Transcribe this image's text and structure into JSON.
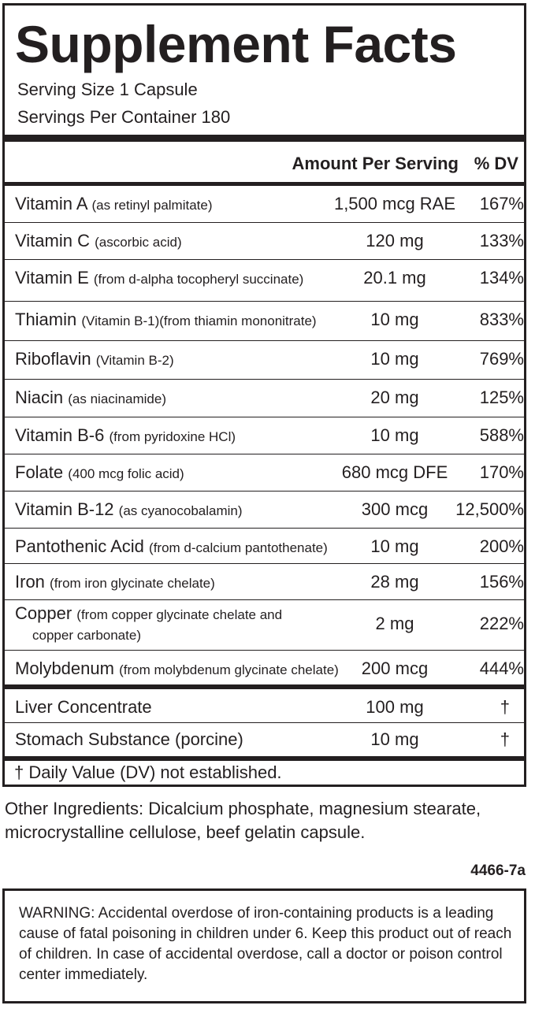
{
  "panel": {
    "title": "Supplement Facts",
    "serving_size": "Serving Size 1 Capsule",
    "servings_per_container": "Servings Per Container 180",
    "header_amount": "Amount Per Serving",
    "header_dv": "% DV",
    "nutrients": [
      {
        "name": "Vitamin A",
        "desc": "(as retinyl palmitate)",
        "amount": "1,500 mcg RAE",
        "dv": "167%"
      },
      {
        "name": "Vitamin C",
        "desc": "(ascorbic acid)",
        "amount": "120 mg",
        "dv": "133%"
      },
      {
        "name": "Vitamin E",
        "desc": "(from d-alpha tocopheryl succinate)",
        "amount": "20.1 mg",
        "dv": "134%"
      },
      {
        "name": "Thiamin",
        "desc": "(Vitamin B-1)(from thiamin mononitrate)",
        "amount": "10 mg",
        "dv": "833%"
      },
      {
        "name": "Riboflavin",
        "desc": "(Vitamin B-2)",
        "amount": "10 mg",
        "dv": "769%"
      },
      {
        "name": "Niacin",
        "desc": "(as niacinamide)",
        "amount": "20 mg",
        "dv": "125%"
      },
      {
        "name": "Vitamin B-6",
        "desc": "(from pyridoxine HCl)",
        "amount": "10 mg",
        "dv": "588%"
      },
      {
        "name": "Folate",
        "desc": "(400 mcg folic acid)",
        "amount": "680 mcg DFE",
        "dv": "170%"
      },
      {
        "name": "Vitamin B-12",
        "desc": "(as cyanocobalamin)",
        "amount": "300 mcg",
        "dv": "12,500%"
      },
      {
        "name": "Pantothenic Acid",
        "desc": "(from d-calcium pantothenate)",
        "amount": "10 mg",
        "dv": "200%"
      },
      {
        "name": "Iron",
        "desc": "(from iron glycinate chelate)",
        "amount": "28 mg",
        "dv": "156%"
      },
      {
        "name": "Copper",
        "desc": "(from copper glycinate chelate and",
        "desc2": "copper carbonate)",
        "amount": "2 mg",
        "dv": "222%"
      },
      {
        "name": "Molybdenum",
        "desc": "(from molybdenum glycinate chelate)",
        "amount": "200 mcg",
        "dv": "444%"
      }
    ],
    "others": [
      {
        "name": "Liver Concentrate",
        "amount": "100 mg",
        "dv": "†"
      },
      {
        "name": "Stomach Substance (porcine)",
        "amount": "10 mg",
        "dv": "†"
      }
    ],
    "footnote": "† Daily Value (DV) not established."
  },
  "other_ingredients": "Other Ingredients: Dicalcium phosphate, magnesium stearate, microcrystalline cellulose, beef gelatin capsule.",
  "product_code": "4466-7a",
  "warning": "WARNING: Accidental overdose of iron-containing products is a leading cause of fatal poisoning in children under 6.  Keep this product out of reach of children.  In case of accidental overdose, call a doctor or poison control center immediately."
}
